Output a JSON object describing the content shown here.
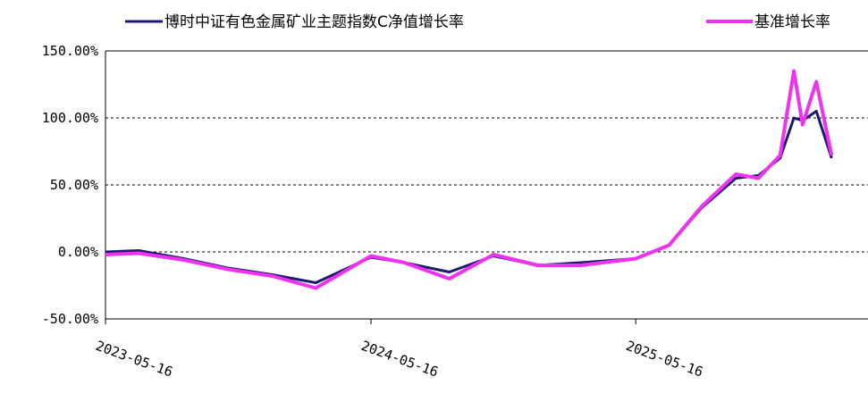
{
  "chart_data": {
    "type": "line",
    "title": "",
    "xlabel": "",
    "ylabel": "",
    "x_ticks": [
      "2023-05-16",
      "2024-05-16",
      "2025-05-16"
    ],
    "y_ticks": [
      "150.00%",
      "100.00%",
      "50.00%",
      "0.00%",
      "-50.00%"
    ],
    "ylim": [
      -50,
      150
    ],
    "y_unit": "%",
    "grid": "horizontal dashed",
    "legend_position": "top",
    "colors": {
      "fund": "#1a1a6e",
      "benchmark": "#ee33ee",
      "grid": "#000000"
    },
    "x_dates": [
      "2023-05-16",
      "2023-07-01",
      "2023-09-01",
      "2023-11-01",
      "2024-01-01",
      "2024-03-01",
      "2024-05-16",
      "2024-07-01",
      "2024-09-01",
      "2024-11-01",
      "2025-01-01",
      "2025-03-01",
      "2025-05-16",
      "2025-07-01",
      "2025-08-15",
      "2025-10-01",
      "2025-11-01",
      "2025-12-01",
      "2025-12-20",
      "2026-01-01",
      "2026-01-20",
      "2026-02-10"
    ],
    "series": [
      {
        "name": "博时中证有色金属矿业主题指数C净值增长率",
        "values": [
          0,
          1,
          -5,
          -12,
          -17,
          -23,
          -4,
          -8,
          -15,
          -3,
          -10,
          -8,
          -5,
          5,
          33,
          55,
          57,
          70,
          100,
          98,
          105,
          70
        ]
      },
      {
        "name": "基准增长率",
        "values": [
          -2,
          -1,
          -6,
          -13,
          -18,
          -27,
          -3,
          -8,
          -20,
          -2,
          -10,
          -10,
          -5,
          5,
          34,
          58,
          55,
          72,
          135,
          95,
          127,
          72
        ]
      }
    ]
  }
}
